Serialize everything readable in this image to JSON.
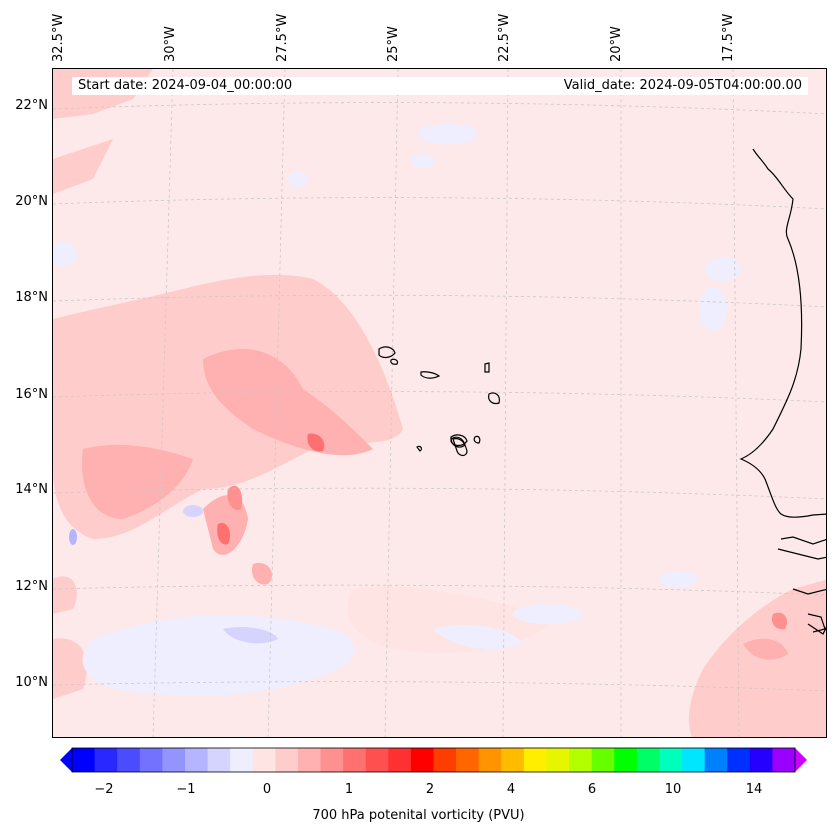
{
  "map": {
    "start_date": "Start date: 2024-09-04_00:00:00",
    "valid_date": "Valid_date: 2024-09-05T04:00:00.00",
    "lon_labels": [
      "32.5°W",
      "30°W",
      "27.5°W",
      "25°W",
      "22.5°W",
      "20°W",
      "17.5°W"
    ],
    "lat_labels": [
      "22°N",
      "20°N",
      "18°N",
      "16°N",
      "14°N",
      "12°N",
      "10°N"
    ],
    "background_color": "#fde9e9"
  },
  "colorbar": {
    "label": "700 hPa potenital vorticity (PVU)",
    "tick_labels": [
      "−2",
      "−1",
      "0",
      "1",
      "2",
      "4",
      "6",
      "10",
      "14"
    ],
    "colors": [
      "#0000ff",
      "#2828ff",
      "#4c4cff",
      "#7272ff",
      "#9494ff",
      "#b4b4ff",
      "#d4d4ff",
      "#eeeeff",
      "#ffe4e4",
      "#ffcccc",
      "#ffb0b0",
      "#ff9090",
      "#ff7070",
      "#ff5050",
      "#ff3030",
      "#ff0000",
      "#ff3d00",
      "#ff6600",
      "#ff9400",
      "#ffbb00",
      "#ffee00",
      "#e6f500",
      "#b3ff00",
      "#66ff00",
      "#00ff00",
      "#00ff66",
      "#00ffbb",
      "#00e6ff",
      "#0080ff",
      "#0030ff",
      "#2600ff",
      "#9900ff"
    ],
    "under_color": "#0000ff",
    "over_color": "#cc00ff"
  }
}
